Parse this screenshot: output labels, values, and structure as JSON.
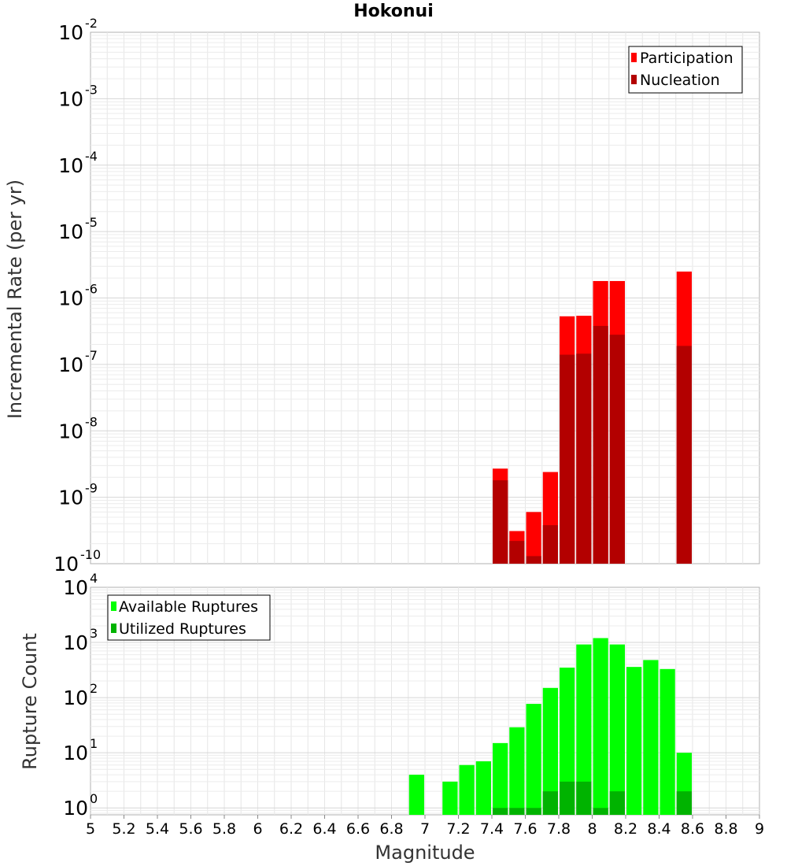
{
  "chart_data": [
    {
      "type": "bar",
      "title": "Hokonui",
      "xlabel": "",
      "ylabel": "Incremental Rate (per yr)",
      "yscale": "log",
      "ylim": [
        1e-10,
        0.01
      ],
      "xlim": [
        5,
        9
      ],
      "ytick_exponents": [
        "-10",
        "-9",
        "-8",
        "-7",
        "-6",
        "-5",
        "-4",
        "-3",
        "-2"
      ],
      "legend_position": "top-right",
      "grid": true,
      "series": [
        {
          "name": "Participation",
          "color": "#ff0000",
          "points": [
            {
              "x": 7.45,
              "y": 2.7e-09
            },
            {
              "x": 7.55,
              "y": 3.1e-10
            },
            {
              "x": 7.65,
              "y": 6e-10
            },
            {
              "x": 7.75,
              "y": 2.4e-09
            },
            {
              "x": 7.85,
              "y": 5.3e-07
            },
            {
              "x": 7.95,
              "y": 5.4e-07
            },
            {
              "x": 8.05,
              "y": 1.8e-06
            },
            {
              "x": 8.15,
              "y": 1.8e-06
            },
            {
              "x": 8.55,
              "y": 2.5e-06
            }
          ]
        },
        {
          "name": "Nucleation",
          "color": "#b30000",
          "points": [
            {
              "x": 7.45,
              "y": 1.8e-09
            },
            {
              "x": 7.55,
              "y": 2.2e-10
            },
            {
              "x": 7.65,
              "y": 1.3e-10
            },
            {
              "x": 7.75,
              "y": 3.8e-10
            },
            {
              "x": 7.85,
              "y": 1.4e-07
            },
            {
              "x": 7.95,
              "y": 1.45e-07
            },
            {
              "x": 8.05,
              "y": 3.8e-07
            },
            {
              "x": 8.15,
              "y": 2.8e-07
            },
            {
              "x": 8.55,
              "y": 1.9e-07
            }
          ]
        }
      ]
    },
    {
      "type": "bar",
      "title": "",
      "xlabel": "Magnitude",
      "ylabel": "Rupture Count",
      "yscale": "log",
      "ylim": [
        0.75,
        10000
      ],
      "xlim": [
        5,
        9
      ],
      "ytick_exponents": [
        "0",
        "1",
        "2",
        "3",
        "4"
      ],
      "xticks": [
        "5",
        "5.2",
        "5.4",
        "5.6",
        "5.8",
        "6",
        "6.2",
        "6.4",
        "6.6",
        "6.8",
        "7",
        "7.2",
        "7.4",
        "7.6",
        "7.8",
        "8",
        "8.2",
        "8.4",
        "8.6",
        "8.8",
        "9"
      ],
      "legend_position": "top-left",
      "grid": true,
      "series": [
        {
          "name": "Available Ruptures",
          "color": "#00ff00",
          "points": [
            {
              "x": 6.95,
              "y": 4
            },
            {
              "x": 7.15,
              "y": 3
            },
            {
              "x": 7.25,
              "y": 6
            },
            {
              "x": 7.35,
              "y": 7
            },
            {
              "x": 7.45,
              "y": 15
            },
            {
              "x": 7.55,
              "y": 29
            },
            {
              "x": 7.65,
              "y": 77
            },
            {
              "x": 7.75,
              "y": 150
            },
            {
              "x": 7.85,
              "y": 350
            },
            {
              "x": 7.95,
              "y": 920
            },
            {
              "x": 8.05,
              "y": 1200
            },
            {
              "x": 8.15,
              "y": 920
            },
            {
              "x": 8.25,
              "y": 360
            },
            {
              "x": 8.35,
              "y": 480
            },
            {
              "x": 8.45,
              "y": 330
            },
            {
              "x": 8.55,
              "y": 10
            }
          ]
        },
        {
          "name": "Utilized Ruptures",
          "color": "#00b300",
          "points": [
            {
              "x": 7.45,
              "y": 1
            },
            {
              "x": 7.55,
              "y": 1
            },
            {
              "x": 7.65,
              "y": 1
            },
            {
              "x": 7.75,
              "y": 2
            },
            {
              "x": 7.85,
              "y": 3
            },
            {
              "x": 7.95,
              "y": 3
            },
            {
              "x": 8.05,
              "y": 1
            },
            {
              "x": 8.15,
              "y": 2
            },
            {
              "x": 8.55,
              "y": 2
            }
          ]
        }
      ]
    }
  ]
}
